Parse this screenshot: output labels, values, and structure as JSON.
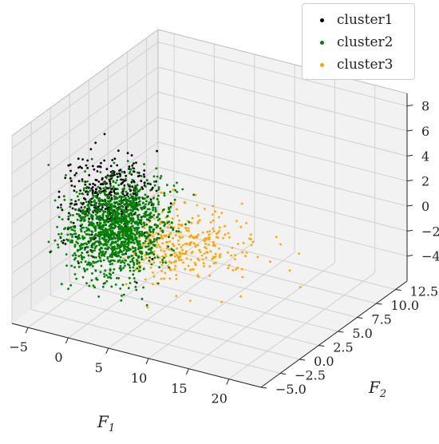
{
  "chart_data": {
    "type": "scatter",
    "projection": "3d",
    "title": "",
    "xlabel": "F",
    "xlabel_subscript": "1",
    "ylabel": "F",
    "ylabel_subscript": "2",
    "zlabel": "",
    "xlim": [
      -7,
      24
    ],
    "ylim": [
      -5,
      14
    ],
    "zlim": [
      -6,
      9
    ],
    "x_ticks": [
      -5,
      0,
      5,
      10,
      15,
      20
    ],
    "x_tick_labels": [
      "−5",
      "0",
      "5",
      "10",
      "15",
      "20"
    ],
    "y_ticks": [
      -5.0,
      -2.5,
      0.0,
      2.5,
      5.0,
      7.5,
      10.0,
      12.5
    ],
    "y_tick_labels": [
      "−5.0",
      "−2.5",
      "0.0",
      "2.5",
      "5.0",
      "7.5",
      "10.0",
      "12.5"
    ],
    "z_ticks": [
      -4,
      -2,
      0,
      2,
      4,
      6,
      8
    ],
    "z_tick_labels": [
      "−4",
      "−2",
      "0",
      "2",
      "4",
      "6",
      "8"
    ],
    "grid": true,
    "legend_position": "top-right",
    "series": [
      {
        "name": "cluster1",
        "color": "#000000",
        "count": 450,
        "distribution": {
          "center": [
            -2.0,
            2.5,
            1.2
          ],
          "spread": [
            2.2,
            1.6,
            1.6
          ]
        }
      },
      {
        "name": "cluster2",
        "color": "#008000",
        "count": 1400,
        "distribution": {
          "center": [
            -1.5,
            3.0,
            -1.2
          ],
          "spread": [
            2.4,
            1.9,
            1.7
          ]
        }
      },
      {
        "name": "cluster3",
        "color": "#FFA500",
        "count": 340,
        "distribution": {
          "center": [
            8.0,
            2.2,
            -0.5
          ],
          "spread": [
            6.0,
            1.8,
            1.2
          ]
        }
      }
    ]
  }
}
